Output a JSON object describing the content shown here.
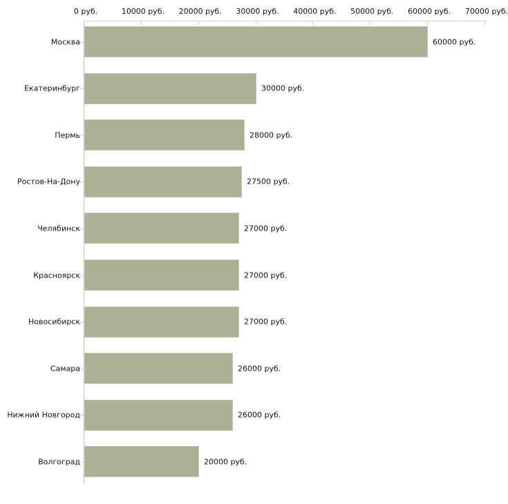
{
  "chart_data": {
    "type": "bar",
    "orientation": "horizontal",
    "title": "",
    "xlabel": "",
    "ylabel": "",
    "unit": "руб.",
    "categories": [
      "Москва",
      "Екатеринбург",
      "Пермь",
      "Ростов-На-Дону",
      "Челябинск",
      "Красноярск",
      "Новосибирск",
      "Самара",
      "Нижний Новгород",
      "Волгоград"
    ],
    "values": [
      60000,
      30000,
      28000,
      27500,
      27000,
      27000,
      27000,
      26000,
      26000,
      20000
    ],
    "value_labels": [
      "60000 руб.",
      "30000 руб.",
      "28000 руб.",
      "27500 руб.",
      "27000 руб.",
      "27000 руб.",
      "27000 руб.",
      "26000 руб.",
      "26000 руб.",
      "20000 руб."
    ],
    "x_ticks": [
      0,
      10000,
      20000,
      30000,
      40000,
      50000,
      60000,
      70000
    ],
    "x_tick_labels": [
      "0 руб.",
      "10000 руб.",
      "20000 руб.",
      "30000 руб.",
      "40000 руб.",
      "50000 руб.",
      "60000 руб.",
      "70000 руб."
    ],
    "xlim": [
      0,
      70000
    ],
    "grid": false,
    "legend": "none",
    "colors": {
      "bar_fill": "#abb196",
      "bar_border": "#c3c7ac",
      "axis_horizontal": "#d2d5bc",
      "axis_vertical": "#c0c0c0",
      "tick": "#d2d5bc",
      "text": "#111111",
      "background": "#ffffff"
    }
  }
}
